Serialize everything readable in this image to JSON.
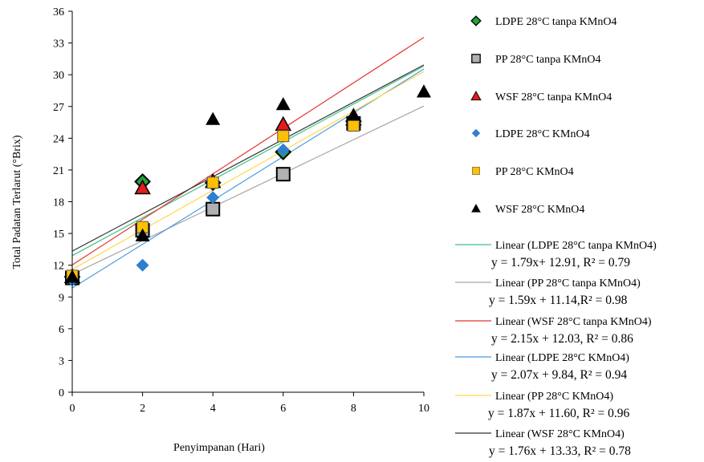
{
  "chart_data": {
    "type": "scatter",
    "title": "",
    "xlabel": "Penyimpanan (Hari)",
    "ylabel": "Total  Padatan Terlarut (°Brix)",
    "xlim": [
      0,
      10
    ],
    "ylim": [
      0,
      36
    ],
    "xticks": [
      "0",
      "2",
      "4",
      "6",
      "8",
      "10"
    ],
    "yticks": [
      "0",
      "3",
      "6",
      "9",
      "12",
      "15",
      "18",
      "21",
      "24",
      "27",
      "30",
      "33",
      "36"
    ],
    "grid": false,
    "legend_position": "right",
    "series": [
      {
        "name": "LDPE 28°C tanpa KMnO4",
        "marker": "diamond",
        "color": "#22a33c",
        "points": [
          [
            0,
            10.9
          ],
          [
            2,
            19.9
          ],
          [
            4,
            19.8
          ],
          [
            6,
            22.7
          ],
          [
            8,
            25.6
          ]
        ],
        "trend": {
          "label": "Linear (LDPE 28°C tanpa KMnO4)",
          "equation": "y = 1.79x+ 12.91, R² = 0.79",
          "slope": 1.79,
          "intercept": 12.91,
          "color": "#3cc383"
        }
      },
      {
        "name": "PP 28°C tanpa KMnO4",
        "marker": "square",
        "color": "#b0b0b0",
        "points": [
          [
            0,
            10.8
          ],
          [
            2,
            15.3
          ],
          [
            4,
            17.3
          ],
          [
            6,
            20.6
          ],
          [
            8,
            25.4
          ]
        ],
        "trend": {
          "label": "Linear (PP 28°C tanpa KMnO4)",
          "equation": "y = 1.59x + 11.14,R² = 0.98",
          "slope": 1.59,
          "intercept": 11.14,
          "color": "#a6a6a6"
        }
      },
      {
        "name": "WSF 28°C tanpa KMnO4",
        "marker": "triangle",
        "color": "#e51c1c",
        "points": [
          [
            0,
            10.9
          ],
          [
            2,
            19.3
          ],
          [
            4,
            19.9
          ],
          [
            6,
            25.3
          ],
          [
            8,
            25.8
          ]
        ],
        "trend": {
          "label": "Linear (WSF 28°C tanpa KMnO4)",
          "equation": "y = 2.15x + 12.03, R² = 0.86",
          "slope": 2.15,
          "intercept": 12.03,
          "color": "#e8322f"
        }
      },
      {
        "name": "LDPE 28°C KMnO4",
        "marker": "diamond-small",
        "color": "#2f7fcf",
        "points": [
          [
            0,
            10.6
          ],
          [
            2,
            12.0
          ],
          [
            4,
            18.4
          ],
          [
            6,
            22.9
          ],
          [
            8,
            25.5
          ]
        ],
        "trend": {
          "label": "Linear (LDPE 28°C KMnO4)",
          "equation": "y = 2.07x + 9.84, R² = 0.94",
          "slope": 2.07,
          "intercept": 9.84,
          "color": "#4a9be0"
        }
      },
      {
        "name": "PP 28°C KMnO4",
        "marker": "square-small",
        "color": "#ffc000",
        "points": [
          [
            0,
            11.0
          ],
          [
            2,
            15.6
          ],
          [
            4,
            19.8
          ],
          [
            6,
            24.2
          ],
          [
            8,
            25.2
          ]
        ],
        "trend": {
          "label": "Linear (PP 28°C KMnO4)",
          "equation": "y = 1.87x + 11.60, R² = 0.96",
          "slope": 1.87,
          "intercept": 11.6,
          "color": "#ffd84a"
        }
      },
      {
        "name": "WSF 28°C KMnO4",
        "marker": "triangle-black",
        "color": "#000000",
        "points": [
          [
            0,
            10.9
          ],
          [
            2,
            14.8
          ],
          [
            4,
            25.8
          ],
          [
            6,
            27.2
          ],
          [
            8,
            26.2
          ],
          [
            10,
            28.4
          ]
        ],
        "trend": {
          "label": "Linear (WSF 28°C KMnO4)",
          "equation": "y = 1.76x + 13.33,  R² = 0.78",
          "slope": 1.76,
          "intercept": 13.33,
          "color": "#333333"
        }
      }
    ]
  }
}
